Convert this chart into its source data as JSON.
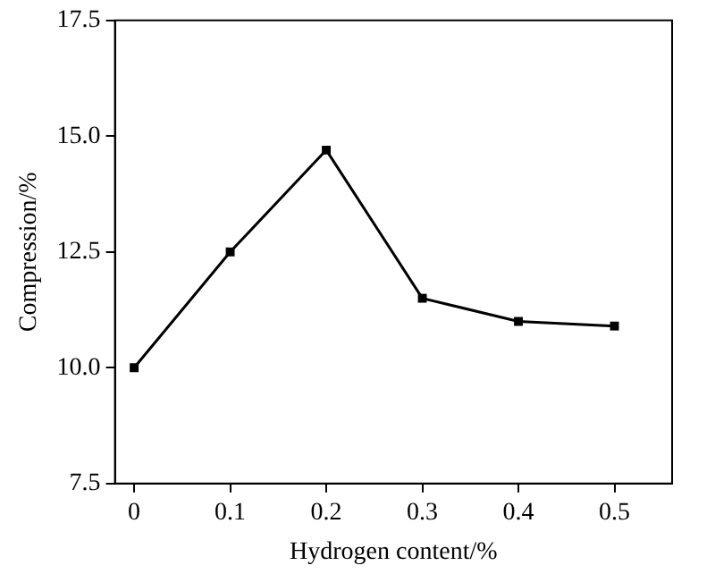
{
  "chart_data": {
    "type": "line",
    "xlabel": "Hydrogen content/%",
    "ylabel": "Compression/%",
    "x": [
      0,
      0.1,
      0.2,
      0.3,
      0.4,
      0.5
    ],
    "series": [
      {
        "color": "#000000",
        "values": [
          10.0,
          12.5,
          14.7,
          11.5,
          11.0,
          10.9
        ]
      }
    ],
    "xlim": [
      -0.02,
      0.56
    ],
    "xticks": [
      0,
      0.1,
      0.2,
      0.3,
      0.4,
      0.5
    ],
    "ylim": [
      7.5,
      17.5
    ],
    "yticks": [
      {
        "value": 7.5,
        "label": "7.5"
      },
      {
        "value": 10,
        "label": "10.0"
      },
      {
        "value": 12.5,
        "label": "12.5"
      },
      {
        "value": 15,
        "label": "15.0"
      },
      {
        "value": 17.5,
        "label": "17.5"
      }
    ],
    "marker": "square",
    "line_style": "solid",
    "grid": false,
    "legend": false
  }
}
